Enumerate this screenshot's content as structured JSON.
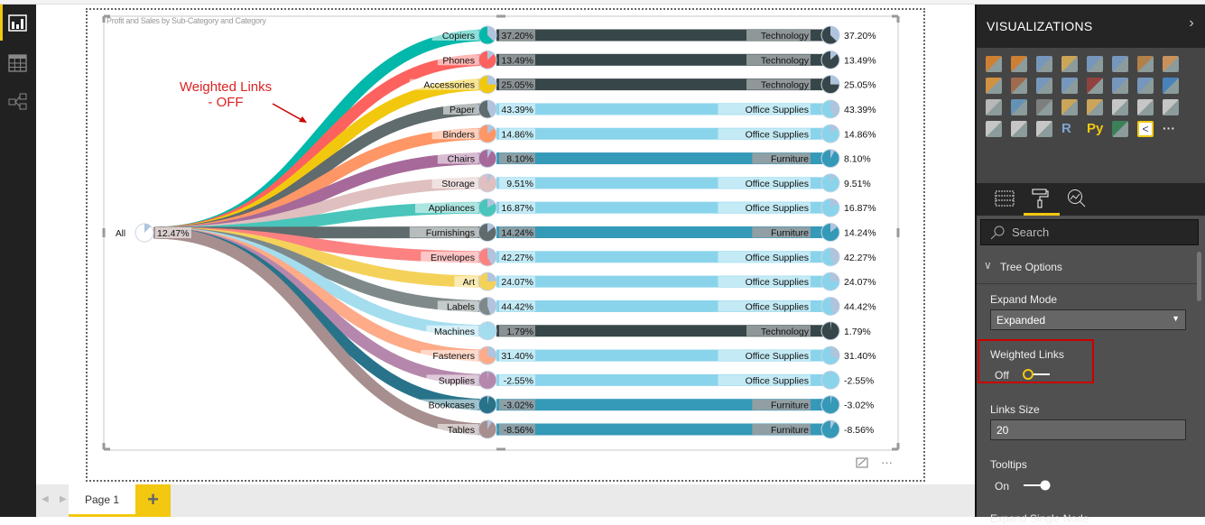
{
  "sidebar": {
    "items": [
      {
        "icon": "report-icon",
        "active": true
      },
      {
        "icon": "data-icon"
      },
      {
        "icon": "relationships-icon"
      }
    ]
  },
  "visual": {
    "title": "Profit and Sales by Sub-Category and Category",
    "annotation_line1": "Weighted Links",
    "annotation_line2": "- OFF",
    "root": {
      "label": "All",
      "pct": "12.47%",
      "value": 12.47
    },
    "category_colors": {
      "Technology": "#374649",
      "Office Supplies": "#8ad4eb",
      "Furniture": "#3599b8"
    },
    "slice_color": "#b0c4de",
    "rows": [
      {
        "name": "Copiers",
        "pct": "37.20%",
        "value": 37.2,
        "category": "Technology",
        "color": "#01b8aa"
      },
      {
        "name": "Phones",
        "pct": "13.49%",
        "value": 13.49,
        "category": "Technology",
        "color": "#fd625e"
      },
      {
        "name": "Accessories",
        "pct": "25.05%",
        "value": 25.05,
        "category": "Technology",
        "color": "#f2c80f"
      },
      {
        "name": "Paper",
        "pct": "43.39%",
        "value": 43.39,
        "category": "Office Supplies",
        "color": "#5f6b6d"
      },
      {
        "name": "Binders",
        "pct": "14.86%",
        "value": 14.86,
        "category": "Office Supplies",
        "color": "#fe9666"
      },
      {
        "name": "Chairs",
        "pct": "8.10%",
        "value": 8.1,
        "category": "Furniture",
        "color": "#a66999"
      },
      {
        "name": "Storage",
        "pct": "9.51%",
        "value": 9.51,
        "category": "Office Supplies",
        "color": "#dfbfbf"
      },
      {
        "name": "Appliances",
        "pct": "16.87%",
        "value": 16.87,
        "category": "Office Supplies",
        "color": "#4ac5bb"
      },
      {
        "name": "Furnishings",
        "pct": "14.24%",
        "value": 14.24,
        "category": "Furniture",
        "color": "#5f6b6d"
      },
      {
        "name": "Envelopes",
        "pct": "42.27%",
        "value": 42.27,
        "category": "Office Supplies",
        "color": "#fb8281"
      },
      {
        "name": "Art",
        "pct": "24.07%",
        "value": 24.07,
        "category": "Office Supplies",
        "color": "#f4d25a"
      },
      {
        "name": "Labels",
        "pct": "44.42%",
        "value": 44.42,
        "category": "Office Supplies",
        "color": "#7f898a"
      },
      {
        "name": "Machines",
        "pct": "1.79%",
        "value": 1.79,
        "category": "Technology",
        "color": "#a4ddee"
      },
      {
        "name": "Fasteners",
        "pct": "31.40%",
        "value": 31.4,
        "category": "Office Supplies",
        "color": "#fdab89"
      },
      {
        "name": "Supplies",
        "pct": "-2.55%",
        "value": -2.55,
        "category": "Office Supplies",
        "color": "#b687ac"
      },
      {
        "name": "Bookcases",
        "pct": "-3.02%",
        "value": -3.02,
        "category": "Furniture",
        "color": "#28738a"
      },
      {
        "name": "Tables",
        "pct": "-8.56%",
        "value": -8.56,
        "category": "Furniture",
        "color": "#a78f8f"
      }
    ]
  },
  "tabs": {
    "page1": "Page 1",
    "add": "+"
  },
  "pane": {
    "title": "VISUALIZATIONS",
    "collapse": "›",
    "search_placeholder": "Search",
    "section": "Tree Options",
    "expand_mode_label": "Expand Mode",
    "expand_mode_value": "Expanded",
    "weighted_links_label": "Weighted Links",
    "weighted_links_state": "Off",
    "links_size_label": "Links Size",
    "links_size_value": "20",
    "tooltips_label": "Tooltips",
    "tooltips_state": "On",
    "expand_single_label": "Expand Single Node",
    "r_label": "R",
    "py_label": "Py",
    "more": "···"
  }
}
